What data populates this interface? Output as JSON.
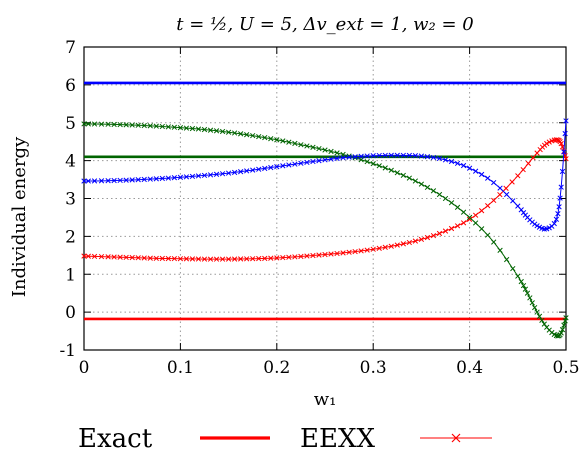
{
  "chart_data": {
    "type": "line",
    "title": "t = ½, U = 5, Δv_ext = 1, w₂ = 0",
    "xlabel": "w₁",
    "ylabel": "Individual energy",
    "xlim": [
      0,
      0.5
    ],
    "ylim": [
      -1,
      7
    ],
    "xticks": [
      "0",
      "0.1",
      "0.2",
      "0.3",
      "0.4",
      "0.5"
    ],
    "yticks": [
      "-1",
      "0",
      "1",
      "2",
      "3",
      "4",
      "5",
      "6",
      "7"
    ],
    "grid": true,
    "legend": {
      "placement": "bottom",
      "entries": [
        "Exact",
        "EEXX"
      ]
    },
    "colors": {
      "red": "#ff0000",
      "green": "#006400",
      "blue": "#0000ff"
    },
    "series": [
      {
        "group": "Exact",
        "color": "#0000ff",
        "x": [
          0,
          0.5
        ],
        "y": [
          6.05,
          6.05
        ]
      },
      {
        "group": "Exact",
        "color": "#006400",
        "x": [
          0,
          0.5
        ],
        "y": [
          4.1,
          4.1
        ]
      },
      {
        "group": "Exact",
        "color": "#ff0000",
        "x": [
          0,
          0.5
        ],
        "y": [
          -0.18,
          -0.18
        ]
      },
      {
        "group": "EEXX",
        "color": "#ff0000",
        "x": [
          0,
          0.025,
          0.05,
          0.075,
          0.1,
          0.125,
          0.15,
          0.175,
          0.2,
          0.225,
          0.25,
          0.275,
          0.3,
          0.325,
          0.35,
          0.375,
          0.4,
          0.425,
          0.45,
          0.47,
          0.48,
          0.49,
          0.495,
          0.5
        ],
        "y": [
          1.48,
          1.46,
          1.44,
          1.42,
          1.41,
          1.4,
          1.4,
          1.41,
          1.43,
          1.47,
          1.52,
          1.58,
          1.66,
          1.77,
          1.92,
          2.14,
          2.45,
          2.95,
          3.6,
          4.2,
          4.45,
          4.55,
          4.45,
          4.05
        ]
      },
      {
        "group": "EEXX",
        "color": "#006400",
        "x": [
          0,
          0.025,
          0.05,
          0.075,
          0.1,
          0.125,
          0.15,
          0.175,
          0.2,
          0.225,
          0.25,
          0.275,
          0.3,
          0.325,
          0.35,
          0.375,
          0.4,
          0.425,
          0.45,
          0.46,
          0.47,
          0.48,
          0.49,
          0.495,
          0.5
        ],
        "y": [
          4.97,
          4.96,
          4.94,
          4.91,
          4.87,
          4.82,
          4.75,
          4.66,
          4.55,
          4.42,
          4.28,
          4.12,
          3.92,
          3.68,
          3.38,
          3.0,
          2.5,
          1.85,
          0.95,
          0.5,
          0.0,
          -0.4,
          -0.62,
          -0.55,
          -0.15
        ]
      },
      {
        "group": "EEXX",
        "color": "#0000ff",
        "x": [
          0,
          0.025,
          0.05,
          0.075,
          0.1,
          0.125,
          0.15,
          0.175,
          0.2,
          0.225,
          0.25,
          0.275,
          0.3,
          0.325,
          0.35,
          0.375,
          0.4,
          0.425,
          0.45,
          0.46,
          0.47,
          0.48,
          0.49,
          0.495,
          0.5
        ],
        "y": [
          3.46,
          3.47,
          3.49,
          3.52,
          3.56,
          3.61,
          3.67,
          3.75,
          3.84,
          3.93,
          4.02,
          4.09,
          4.13,
          4.14,
          4.12,
          4.02,
          3.8,
          3.42,
          2.8,
          2.5,
          2.28,
          2.2,
          2.45,
          3.3,
          5.05
        ]
      }
    ]
  }
}
